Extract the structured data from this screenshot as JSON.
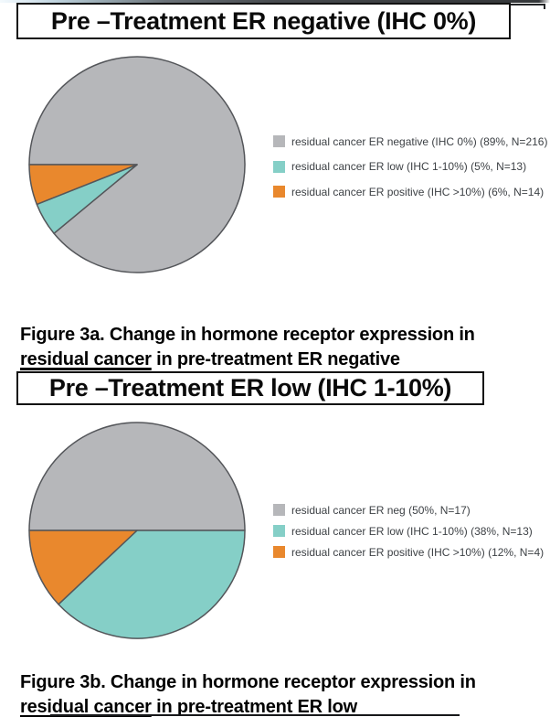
{
  "figures": [
    {
      "id": "3a",
      "title": "Pre –Treatment ER negative (IHC 0%)",
      "legend": [
        {
          "label": "residual cancer ER negative (IHC 0%) (89%, N=216)",
          "color": "#b6b7ba"
        },
        {
          "label": "residual cancer ER low (IHC 1-10%) (5%, N=13)",
          "color": "#85cfc7"
        },
        {
          "label": "residual cancer ER positive (IHC >10%) (6%, N=14)",
          "color": "#e9882d"
        }
      ],
      "caption": {
        "line1": "Figure 3a. Change in hormone receptor expression in",
        "underlined": "residual cancer",
        "rest": " in pre-treatment ER negative"
      }
    },
    {
      "id": "3b",
      "title": "Pre –Treatment ER low (IHC 1-10%)",
      "legend": [
        {
          "label": "residual cancer ER neg (50%, N=17)",
          "color": "#b6b7ba"
        },
        {
          "label": "residual cancer ER low (IHC 1-10%) (38%, N=13)",
          "color": "#85cfc7"
        },
        {
          "label": "residual cancer ER positive (IHC >10%) (12%, N=4)",
          "color": "#e9882d"
        }
      ],
      "caption": {
        "line1": "Figure 3b. Change in hormone receptor expression in",
        "underlined": "residual cancer",
        "rest": " in pre-treatment ER low"
      }
    }
  ],
  "chart_data": [
    {
      "type": "pie",
      "title": "Pre –Treatment ER negative (IHC 0%)",
      "labels": [
        "residual cancer ER negative (IHC 0%)",
        "residual cancer ER low (IHC 1-10%)",
        "residual cancer ER positive (IHC >10%)"
      ],
      "values": [
        89,
        5,
        6
      ],
      "counts": [
        216,
        13,
        14
      ],
      "colors": [
        "#b6b7ba",
        "#85cfc7",
        "#e9882d"
      ],
      "stroke": "#54565a",
      "start_angle_deg": 180,
      "direction": "clockwise",
      "legend_position": "right"
    },
    {
      "type": "pie",
      "title": "Pre –Treatment ER low (IHC 1-10%)",
      "labels": [
        "residual cancer ER neg",
        "residual cancer ER low (IHC 1-10%)",
        "residual cancer ER positive (IHC >10%)"
      ],
      "values": [
        50,
        38,
        12
      ],
      "counts": [
        17,
        13,
        4
      ],
      "colors": [
        "#b6b7ba",
        "#85cfc7",
        "#e9882d"
      ],
      "stroke": "#54565a",
      "start_angle_deg": 180,
      "direction": "clockwise",
      "legend_position": "right"
    }
  ]
}
